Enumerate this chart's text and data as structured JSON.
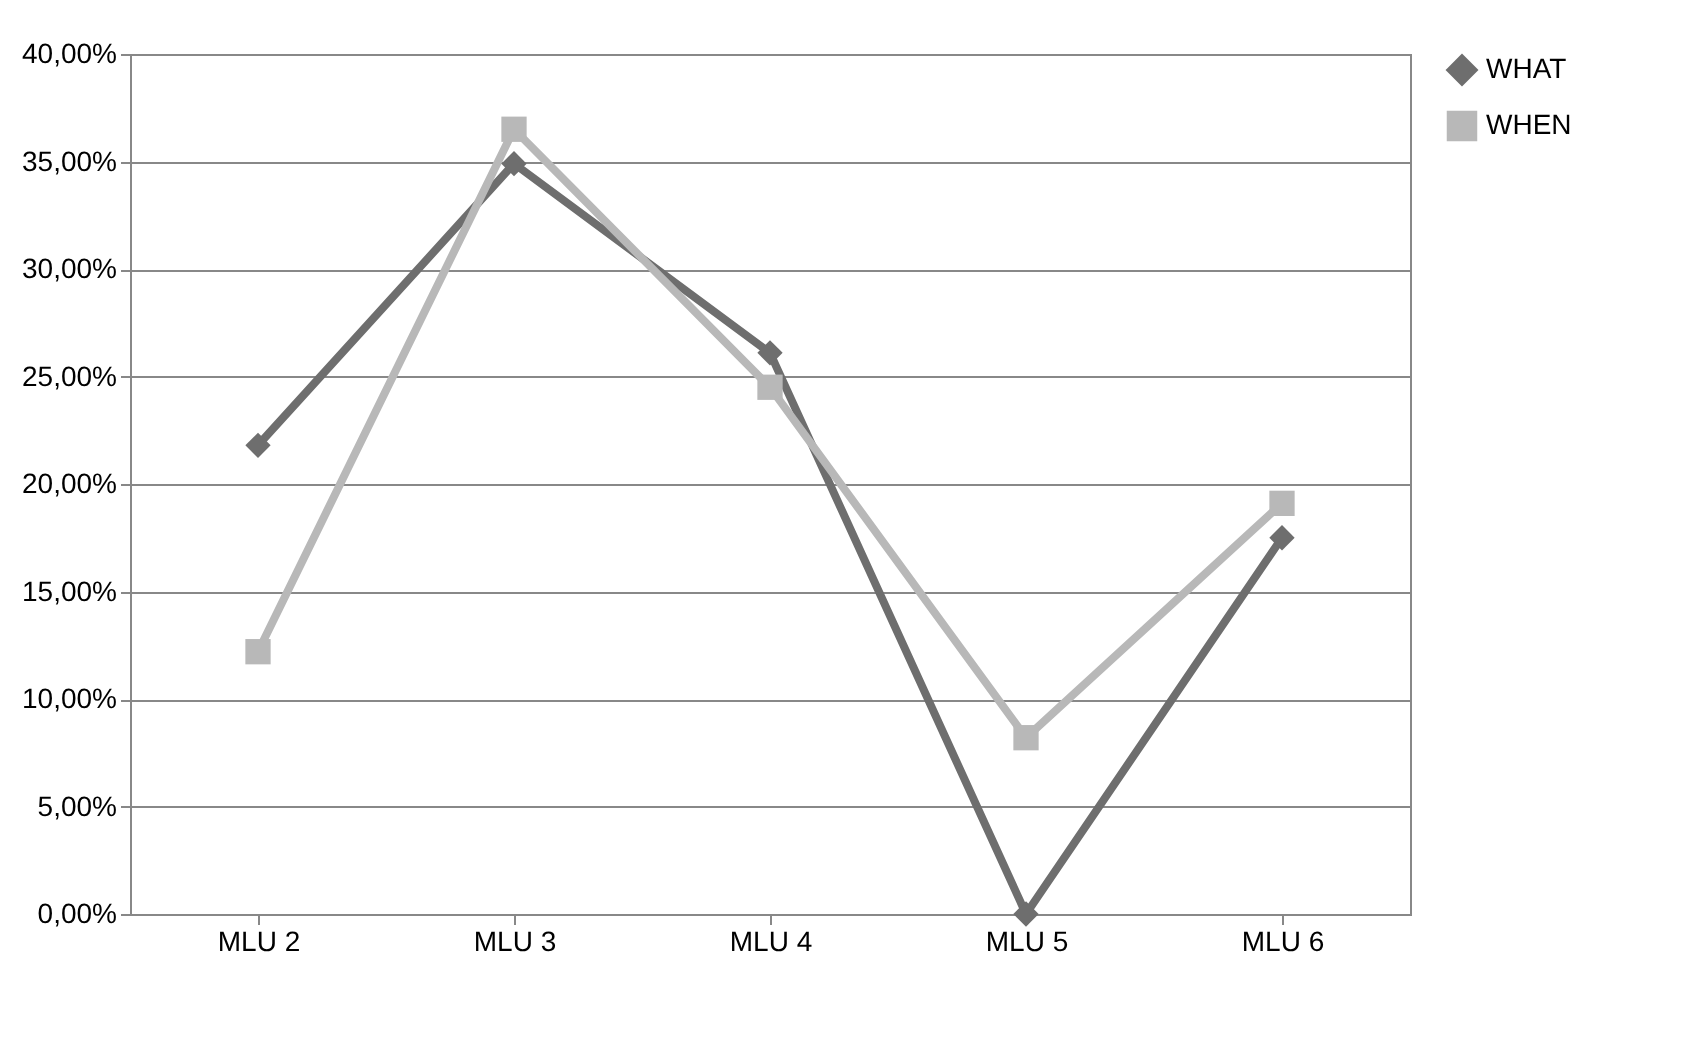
{
  "chart_data": {
    "type": "line",
    "categories": [
      "MLU 2",
      "MLU 3",
      "MLU 4",
      "MLU 5",
      "MLU 6"
    ],
    "series": [
      {
        "name": "WHAT",
        "color": "#6e6e6e",
        "marker": "diamond",
        "values": [
          21.8,
          34.9,
          26.1,
          0,
          17.5
        ]
      },
      {
        "name": "WHEN",
        "color": "#b8b8b8",
        "marker": "square",
        "values": [
          12.2,
          36.5,
          24.5,
          8.2,
          19.1
        ]
      }
    ],
    "ylim": [
      0,
      40
    ],
    "yticks": [
      {
        "value": 0,
        "label": "0,00%"
      },
      {
        "value": 5,
        "label": "5,00%"
      },
      {
        "value": 10,
        "label": "10,00%"
      },
      {
        "value": 15,
        "label": "15,00%"
      },
      {
        "value": 20,
        "label": "20,00%"
      },
      {
        "value": 25,
        "label": "25,00%"
      },
      {
        "value": 30,
        "label": "30,00%"
      },
      {
        "value": 35,
        "label": "35,00%"
      },
      {
        "value": 40,
        "label": "40,00%"
      }
    ],
    "grid": "y",
    "legend": "right",
    "line_style": "solid"
  }
}
